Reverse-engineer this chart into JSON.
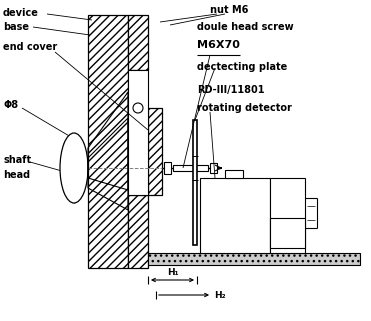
{
  "bg_color": "#ffffff",
  "line_color": "#000000",
  "labels": {
    "device": "device",
    "base": "base",
    "end_cover": "end cover",
    "phi8": "Φ8",
    "shaft": "shaft",
    "head": "head",
    "nut_m6": "nut M6",
    "doule_head": "doule head screw",
    "m6x70": "M6X70",
    "detecting": "dectecting plate",
    "rd3": "RD-III/11801",
    "rotating": "rotating detector",
    "h1": "H₁",
    "h2": "H₂"
  },
  "figsize": [
    3.71,
    3.21
  ],
  "dpi": 100
}
